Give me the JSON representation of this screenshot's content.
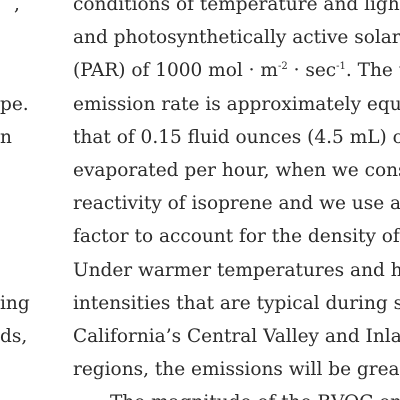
{
  "left_column": [
    ",",
    "pe.",
    "n",
    "ing",
    "ds,"
  ],
  "body_lines": [
    [
      "conditions of temperature and ligh"
    ],
    [
      "and photosynthetically active solar"
    ],
    [
      "(PAR) of 1000 mol · m",
      {
        "sup": "-2"
      },
      " · sec",
      {
        "sup": "-1"
      },
      ". The tr"
    ],
    [
      "emission rate is approximately equ"
    ],
    [
      "that of 0.15 fluid ounces (4.5 mL) of"
    ],
    [
      "evaporated per hour, when we cons"
    ],
    [
      "reactivity of isoprene and we use a c"
    ],
    [
      "factor to account for the density of"
    ],
    [
      "Under warmer temperatures and hi"
    ],
    [
      "intensities that are typical during s"
    ],
    [
      "California’s Central Valley and Inlan"
    ],
    [
      "regions, the emissions will be great"
    ],
    [
      "The magnitude of the BVOC em"
    ]
  ]
}
